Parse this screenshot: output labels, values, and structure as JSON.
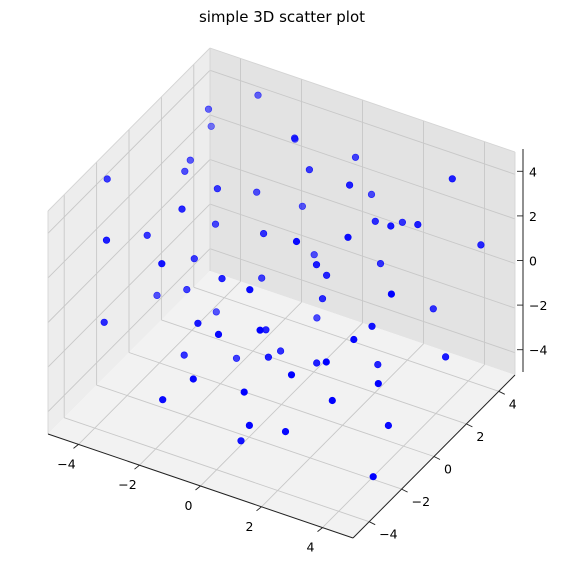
{
  "chart_data": {
    "type": "scatter",
    "title": "simple 3D scatter plot",
    "xlabel": "",
    "ylabel": "",
    "zlabel": "",
    "xlim": [
      -5,
      5
    ],
    "ylim": [
      -5,
      5
    ],
    "zlim": [
      -5,
      5
    ],
    "x_ticks": [
      -4,
      -2,
      0,
      2,
      4
    ],
    "y_ticks": [
      -4,
      -2,
      0,
      2,
      4
    ],
    "z_ticks": [
      -4,
      -2,
      0,
      2,
      4
    ],
    "tick_labels": {
      "x": [
        "−4",
        "−2",
        "0",
        "2",
        "4"
      ],
      "y": [
        "−4",
        "−2",
        "0",
        "2",
        "4"
      ],
      "z": [
        "−4",
        "−2",
        "0",
        "2",
        "4"
      ]
    },
    "grid": true,
    "marker_color": "#0000ff",
    "series": [
      {
        "points": [
          [
            -4.6,
            -2.1,
            4.5
          ],
          [
            -4.2,
            3.4,
            3.8
          ],
          [
            -3.7,
            1.0,
            3.0
          ],
          [
            -3.5,
            -1.7,
            2.2
          ],
          [
            -3.0,
            4.2,
            4.4
          ],
          [
            -2.7,
            -0.3,
            0.5
          ],
          [
            -2.3,
            2.8,
            1.4
          ],
          [
            -2.0,
            4.6,
            2.6
          ],
          [
            -1.8,
            -4.0,
            3.4
          ],
          [
            -1.5,
            1.6,
            -1.2
          ],
          [
            -1.2,
            -2.9,
            0.2
          ],
          [
            -1.0,
            3.9,
            -1.6
          ],
          [
            -0.8,
            0.4,
            2.0
          ],
          [
            -0.5,
            -4.5,
            -0.8
          ],
          [
            -0.2,
            2.1,
            3.9
          ],
          [
            0.1,
            -1.0,
            -2.1
          ],
          [
            0.4,
            4.8,
            1.1
          ],
          [
            0.7,
            -3.3,
            -3.2
          ],
          [
            1.0,
            0.9,
            0.6
          ],
          [
            1.3,
            -2.2,
            -4.0
          ],
          [
            1.6,
            3.1,
            -0.2
          ],
          [
            1.9,
            -4.9,
            2.8
          ],
          [
            2.2,
            1.8,
            -3.5
          ],
          [
            2.5,
            -0.6,
            4.1
          ],
          [
            2.8,
            4.1,
            -2.4
          ],
          [
            3.1,
            -2.7,
            -1.4
          ],
          [
            3.4,
            0.2,
            -4.5
          ],
          [
            3.7,
            -4.2,
            1.7
          ],
          [
            4.0,
            2.6,
            -2.9
          ],
          [
            4.4,
            -1.5,
            3.1
          ],
          [
            -4.4,
            0.6,
            -2.6
          ],
          [
            -3.9,
            -3.6,
            -0.5
          ],
          [
            -3.2,
            2.0,
            -3.8
          ],
          [
            -2.5,
            -1.3,
            -3.0
          ],
          [
            -1.9,
            0.8,
            -4.4
          ],
          [
            -1.4,
            -4.7,
            -2.0
          ],
          [
            -0.7,
            3.5,
            -4.0
          ],
          [
            0.0,
            -2.5,
            -4.8
          ],
          [
            0.6,
            1.4,
            -1.0
          ],
          [
            1.2,
            -0.1,
            1.9
          ],
          [
            1.8,
            2.4,
            2.3
          ],
          [
            2.4,
            -3.9,
            0.3
          ],
          [
            3.0,
            1.1,
            3.6
          ],
          [
            3.6,
            -0.8,
            -1.8
          ],
          [
            4.2,
            4.4,
            0.9
          ],
          [
            -4.8,
            4.7,
            1.8
          ],
          [
            -3.4,
            -4.4,
            4.0
          ],
          [
            -2.1,
            0.0,
            3.7
          ],
          [
            -0.9,
            2.5,
            4.7
          ],
          [
            0.3,
            4.0,
            3.3
          ],
          [
            1.5,
            -1.9,
            4.4
          ],
          [
            2.7,
            0.5,
            -0.6
          ],
          [
            3.9,
            3.2,
            4.6
          ],
          [
            -0.3,
            -0.4,
            -1.5
          ],
          [
            0.9,
            -4.0,
            -1.1
          ],
          [
            2.0,
            3.7,
            1.4
          ],
          [
            -2.8,
            1.2,
            0.9
          ],
          [
            -1.1,
            -1.6,
            1.3
          ],
          [
            4.6,
            -3.0,
            -3.9
          ],
          [
            1.1,
            0.1,
            -2.7
          ],
          [
            -3.0,
            -0.2,
            -1.1
          ],
          [
            -2.2,
            -2.0,
            4.2
          ],
          [
            -0.4,
            0.7,
            -3.3
          ],
          [
            0.5,
            -2.9,
            2.5
          ],
          [
            2.9,
            -1.0,
            0.0
          ],
          [
            3.3,
            2.2,
            3.0
          ],
          [
            -4.0,
            1.9,
            2.7
          ],
          [
            -1.6,
            4.3,
            0.0
          ],
          [
            -0.1,
            -3.7,
            0.8
          ],
          [
            1.7,
            1.0,
            4.9
          ]
        ]
      }
    ]
  }
}
